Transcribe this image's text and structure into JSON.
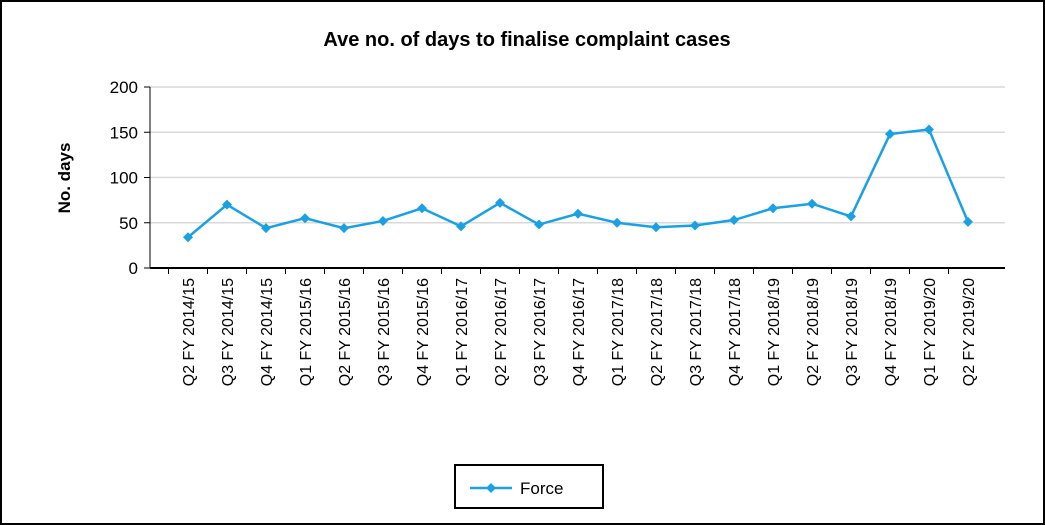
{
  "chart_data": {
    "type": "line",
    "title": "Ave no. of days to finalise complaint cases",
    "y_label": "No. days",
    "categories": [
      "Q2 FY 2014/15",
      "Q3 FY 2014/15",
      "Q4 FY 2014/15",
      "Q1 FY 2015/16",
      "Q2 FY 2015/16",
      "Q3 FY 2015/16",
      "Q4 FY 2015/16",
      "Q1 FY 2016/17",
      "Q2 FY 2016/17",
      "Q3 FY 2016/17",
      "Q4 FY 2016/17",
      "Q1 FY 2017/18",
      "Q2 FY 2017/18",
      "Q3 FY 2017/18",
      "Q4 FY 2017/18",
      "Q1 FY 2018/19",
      "Q2 FY 2018/19",
      "Q3 FY 2018/19",
      "Q4 FY 2018/19",
      "Q1 FY 2019/20",
      "Q2 FY 2019/20"
    ],
    "series": [
      {
        "name": "Force",
        "color": "#1ba1e2",
        "values": [
          34,
          70,
          44,
          55,
          44,
          52,
          66,
          46,
          72,
          48,
          60,
          50,
          45,
          47,
          53,
          66,
          71,
          57,
          148,
          153,
          51
        ]
      }
    ],
    "ylim": [
      0,
      200
    ],
    "yticks": [
      0,
      50,
      100,
      150,
      200
    ],
    "grid": true,
    "legend": "bottom"
  }
}
